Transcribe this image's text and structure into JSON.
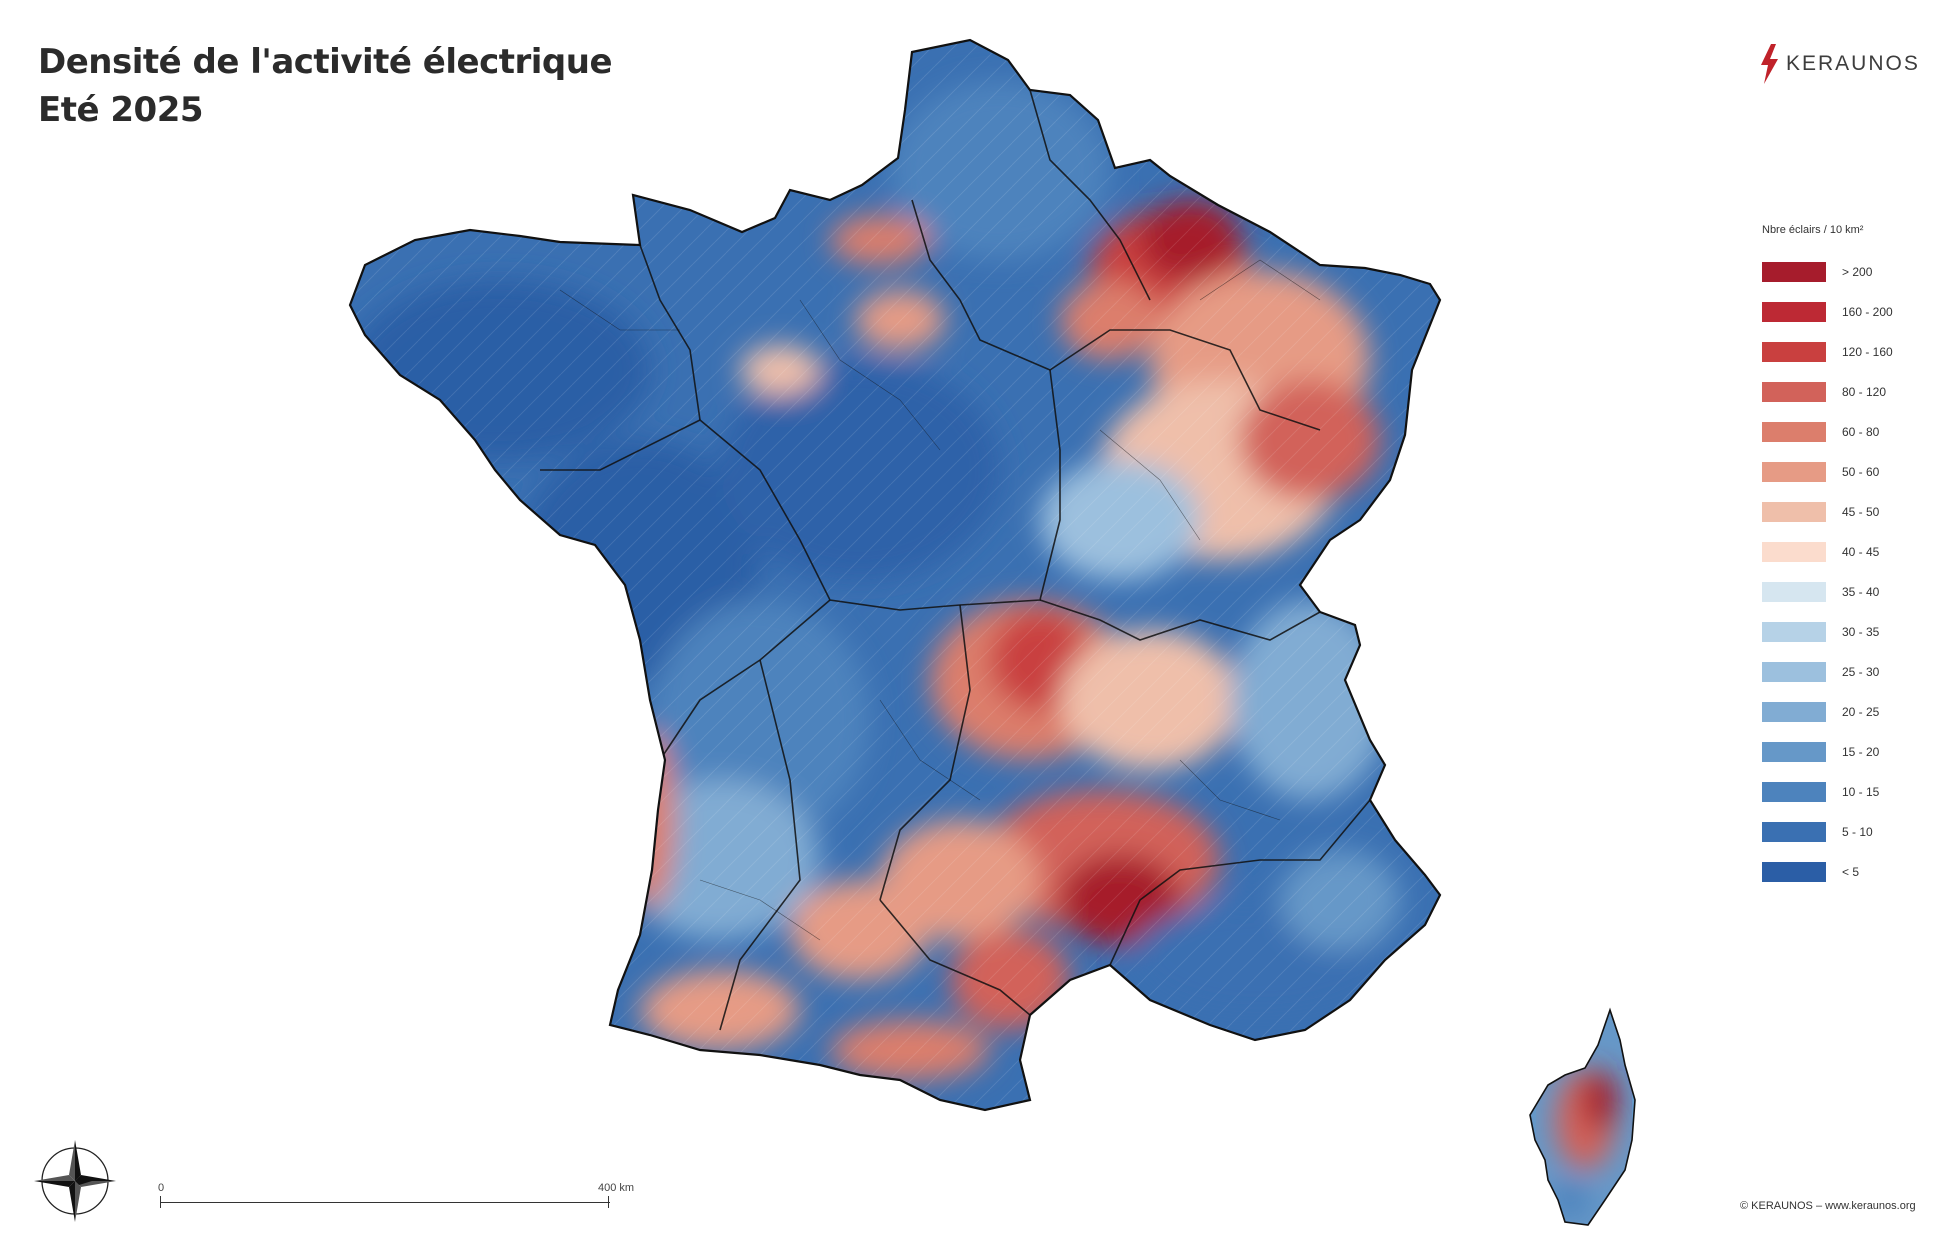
{
  "title": {
    "line1": "Densité de l'activité électrique",
    "line2": "Eté 2025"
  },
  "logo": {
    "text": "KERAUNOS",
    "icon": "lightning-bolt-icon",
    "color": "#c0222a"
  },
  "legend": {
    "title": "Nbre éclairs / 10 km²",
    "classes": [
      {
        "label": "> 200",
        "color": "#a61c2c"
      },
      {
        "label": "160 - 200",
        "color": "#bd2934"
      },
      {
        "label": "120 - 160",
        "color": "#c9403f"
      },
      {
        "label": "80 - 120",
        "color": "#d2625a"
      },
      {
        "label": "60 - 80",
        "color": "#dc7e6c"
      },
      {
        "label": "50 - 60",
        "color": "#e69b85"
      },
      {
        "label": "45 - 50",
        "color": "#efbfaa"
      },
      {
        "label": "40 - 45",
        "color": "#fbdccd"
      },
      {
        "label": "35 - 40",
        "color": "#d6e6f0"
      },
      {
        "label": "30 - 35",
        "color": "#b6d2e7"
      },
      {
        "label": "25 - 30",
        "color": "#9cc0de"
      },
      {
        "label": "20 - 25",
        "color": "#81acd3"
      },
      {
        "label": "15 - 20",
        "color": "#6698c8"
      },
      {
        "label": "10 - 15",
        "color": "#4d83bd"
      },
      {
        "label": "5 - 10",
        "color": "#3a70b2"
      },
      {
        "label": "< 5",
        "color": "#2b5ea6"
      }
    ]
  },
  "scale": {
    "start_label": "0",
    "end_label": "400 km"
  },
  "compass": {
    "icon": "compass-rose-icon"
  },
  "map": {
    "regions": [
      "france-mainland",
      "corsica"
    ],
    "border_color": "#111111"
  },
  "copyright": "© KERAUNOS – www.keraunos.org"
}
